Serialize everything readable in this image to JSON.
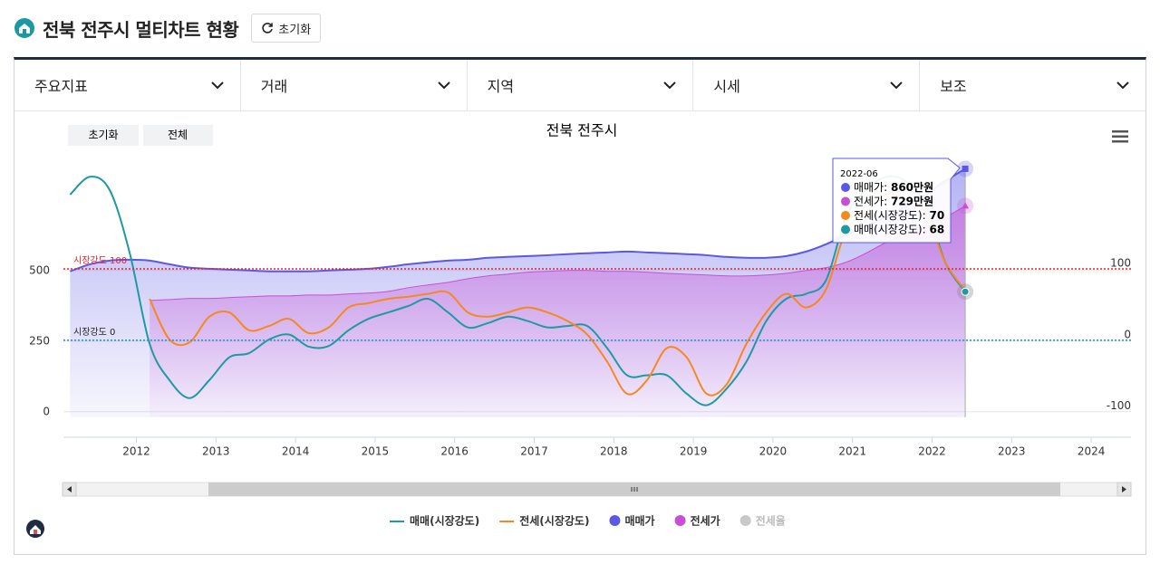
{
  "header": {
    "title": "전북 전주시 멀티차트 현황",
    "reset": "초기화"
  },
  "filters": [
    "주요지표",
    "거래",
    "지역",
    "시세",
    "보조"
  ],
  "chart_buttons": [
    "초기화",
    "전체"
  ],
  "chart_data": {
    "type": "line",
    "title": "전북 전주시",
    "x": [
      "2011-03",
      "2011-06",
      "2011-09",
      "2011-12",
      "2012-03",
      "2012-06",
      "2012-09",
      "2012-12",
      "2013-03",
      "2013-06",
      "2013-09",
      "2013-12",
      "2014-03",
      "2014-06",
      "2014-09",
      "2014-12",
      "2015-03",
      "2015-06",
      "2015-09",
      "2015-12",
      "2016-03",
      "2016-06",
      "2016-09",
      "2016-12",
      "2017-03",
      "2017-06",
      "2017-09",
      "2017-12",
      "2018-03",
      "2018-06",
      "2018-09",
      "2018-12",
      "2019-03",
      "2019-06",
      "2019-09",
      "2019-12",
      "2020-03",
      "2020-06",
      "2020-09",
      "2020-12",
      "2021-03",
      "2021-06",
      "2021-09",
      "2021-12",
      "2022-03",
      "2022-06"
    ],
    "series": [
      {
        "name": "매매(시장강도)",
        "color": "#1f9aa0",
        "axis": "y2",
        "style": "line",
        "values": [
          204,
          229,
          210,
          122,
          -5,
          -56,
          -81,
          -56,
          -24,
          -18,
          1,
          8,
          -9,
          -8,
          14,
          30,
          39,
          48,
          58,
          39,
          18,
          24,
          33,
          27,
          18,
          20,
          20,
          -11,
          -49,
          -49,
          -49,
          -75,
          -91,
          -68,
          -30,
          27,
          58,
          65,
          84,
          172,
          210,
          229,
          223,
          191,
          109,
          68
        ]
      },
      {
        "name": "전세(시장강도)",
        "color": "#f5891f",
        "axis": "y2",
        "style": "line",
        "values": [
          null,
          null,
          null,
          null,
          58,
          1,
          -3,
          33,
          39,
          14,
          20,
          30,
          10,
          18,
          46,
          52,
          58,
          61,
          65,
          67,
          39,
          33,
          39,
          46,
          39,
          27,
          8,
          -30,
          -75,
          -56,
          -11,
          -24,
          -75,
          -62,
          -5,
          39,
          65,
          46,
          71,
          153,
          178,
          204,
          197,
          178,
          109,
          70
        ]
      },
      {
        "name": "매매가",
        "color": "#5b58e6",
        "style": "area",
        "values": [
          497,
          522,
          535,
          538,
          535,
          522,
          510,
          506,
          503,
          500,
          497,
          497,
          497,
          500,
          503,
          506,
          513,
          522,
          529,
          535,
          538,
          545,
          548,
          551,
          554,
          558,
          561,
          564,
          567,
          564,
          561,
          558,
          554,
          548,
          545,
          545,
          551,
          567,
          593,
          625,
          657,
          689,
          728,
          769,
          817,
          860
        ]
      },
      {
        "name": "전세가",
        "color": "#c84fd4",
        "style": "area",
        "values": [
          null,
          null,
          null,
          null,
          394,
          397,
          401,
          401,
          404,
          407,
          410,
          410,
          413,
          413,
          417,
          420,
          426,
          439,
          449,
          458,
          471,
          481,
          487,
          494,
          497,
          500,
          500,
          497,
          497,
          494,
          490,
          487,
          484,
          481,
          481,
          484,
          490,
          500,
          510,
          529,
          561,
          599,
          631,
          663,
          689,
          729
        ]
      },
      {
        "name": "전세율",
        "color": "#c8c8c8",
        "style": "hidden"
      }
    ],
    "xlim": [
      "2011-02",
      "2024-07"
    ],
    "xticks": [
      "2012",
      "2013",
      "2014",
      "2015",
      "2016",
      "2017",
      "2018",
      "2019",
      "2020",
      "2021",
      "2022",
      "2023",
      "2024"
    ],
    "ylim": [
      -20,
      900
    ],
    "yticks": [
      0,
      250,
      500
    ],
    "y2lim": [
      -108,
      256
    ],
    "y2ticks": [
      -100,
      0,
      100
    ],
    "annotations": [
      {
        "label": "시장강도 100",
        "y2": 100,
        "color": "#e8212a"
      },
      {
        "label": "시장강도 0",
        "y2": 0,
        "color": "#2a9ad6"
      }
    ],
    "tooltip": {
      "x": "2022-06",
      "labels": [
        "860만원",
        "729만원"
      ]
    },
    "grid": true,
    "legend": "bottom"
  }
}
